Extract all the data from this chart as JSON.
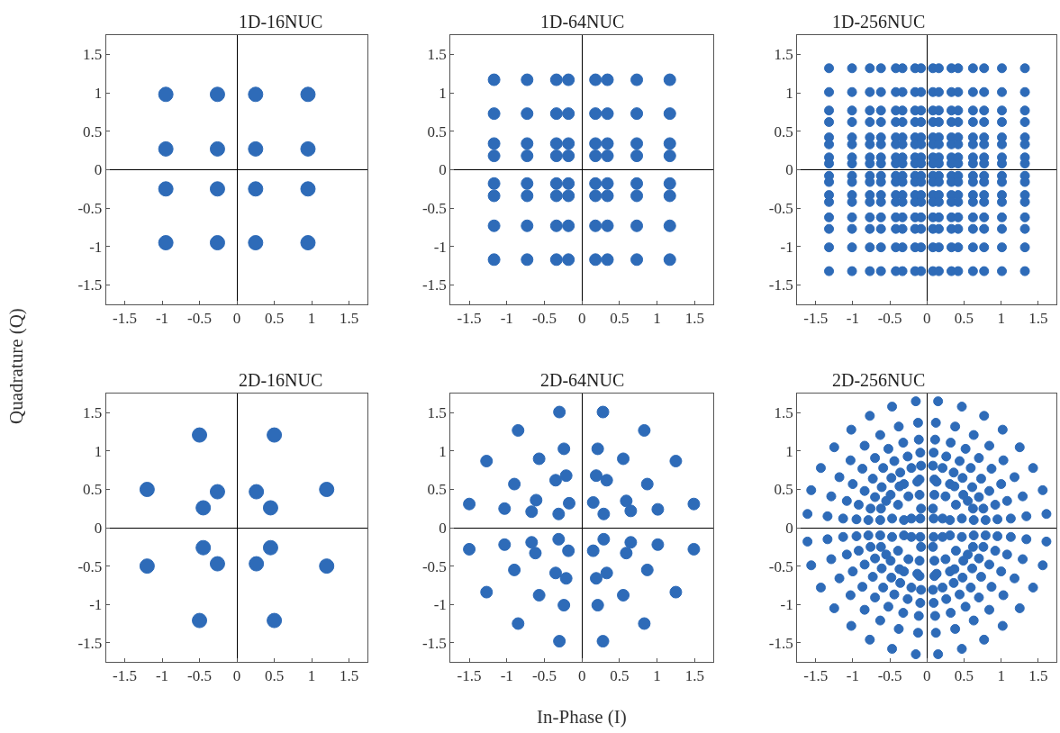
{
  "chart_data": [
    {
      "type": "scatter",
      "title": "1D-16NUC",
      "ylabel": "Quadrature (Q)",
      "color": "#2e6bb8",
      "marker": "circle",
      "xlim": [
        -1.75,
        1.75
      ],
      "ylim": [
        -1.75,
        1.75
      ],
      "xticks": [
        -1.5,
        -1,
        -0.5,
        0,
        0.5,
        1,
        1.5
      ],
      "yticks": [
        -1.5,
        -1,
        -0.5,
        0,
        0.5,
        1,
        1.5
      ],
      "x": [
        -0.95,
        -0.26,
        0.25,
        0.95,
        -0.95,
        -0.26,
        0.25,
        0.95,
        -0.95,
        -0.26,
        0.25,
        0.95,
        -0.95,
        -0.26,
        0.25,
        0.95
      ],
      "values": [
        0.98,
        0.98,
        0.98,
        0.98,
        0.27,
        0.27,
        0.27,
        0.27,
        -0.25,
        -0.25,
        -0.25,
        -0.25,
        -0.95,
        -0.95,
        -0.95,
        -0.95
      ]
    },
    {
      "type": "scatter",
      "title": "1D-64NUC",
      "color": "#2e6bb8",
      "marker": "circle",
      "xlim": [
        -1.75,
        1.75
      ],
      "ylim": [
        -1.75,
        1.75
      ],
      "xticks": [
        -1.5,
        -1,
        -0.5,
        0,
        0.5,
        1,
        1.5
      ],
      "yticks": [
        -1.5,
        -1,
        -0.5,
        0,
        0.5,
        1,
        1.5
      ],
      "x": [
        -1.17,
        -0.73,
        -0.34,
        -0.18,
        0.18,
        0.34,
        0.73,
        1.17,
        -1.17,
        -0.73,
        -0.34,
        -0.18,
        0.18,
        0.34,
        0.73,
        1.17,
        -1.17,
        -0.73,
        -0.34,
        -0.18,
        0.18,
        0.34,
        0.73,
        1.17,
        -1.17,
        -0.73,
        -0.34,
        -0.18,
        0.18,
        0.34,
        0.73,
        1.17,
        -1.17,
        -0.73,
        -0.34,
        -0.18,
        0.18,
        0.34,
        0.73,
        1.17,
        -1.17,
        -0.73,
        -0.34,
        -0.18,
        0.18,
        0.34,
        0.73,
        1.17,
        -1.17,
        -0.73,
        -0.34,
        -0.18,
        0.18,
        0.34,
        0.73,
        1.17,
        -1.17,
        -0.73,
        -0.34,
        -0.18,
        0.18,
        0.34,
        0.73,
        1.17
      ],
      "values": [
        1.17,
        1.17,
        1.17,
        1.17,
        1.17,
        1.17,
        1.17,
        1.17,
        0.73,
        0.73,
        0.73,
        0.73,
        0.73,
        0.73,
        0.73,
        0.73,
        0.34,
        0.34,
        0.34,
        0.34,
        0.34,
        0.34,
        0.34,
        0.34,
        0.18,
        0.18,
        0.18,
        0.18,
        0.18,
        0.18,
        0.18,
        0.18,
        -0.18,
        -0.18,
        -0.18,
        -0.18,
        -0.18,
        -0.18,
        -0.18,
        -0.18,
        -0.34,
        -0.34,
        -0.34,
        -0.34,
        -0.34,
        -0.34,
        -0.34,
        -0.34,
        -0.73,
        -0.73,
        -0.73,
        -0.73,
        -0.73,
        -0.73,
        -0.73,
        -0.73,
        -1.17,
        -1.17,
        -1.17,
        -1.17,
        -1.17,
        -1.17,
        -1.17,
        -1.17
      ]
    },
    {
      "type": "scatter",
      "title": "1D-256NUC",
      "color": "#2e6bb8",
      "marker": "circle",
      "xlim": [
        -1.75,
        1.75
      ],
      "ylim": [
        -1.75,
        1.75
      ],
      "xticks": [
        -1.5,
        -1,
        -0.5,
        0,
        0.5,
        1,
        1.5
      ],
      "yticks": [
        -1.5,
        -1,
        -0.5,
        0,
        0.5,
        1,
        1.5
      ],
      "x": [
        -1.32,
        -1.01,
        -0.77,
        -0.62,
        -0.42,
        -0.33,
        -0.16,
        -0.08,
        0.08,
        0.16,
        0.33,
        0.42,
        0.62,
        0.77,
        1.01,
        1.32,
        -1.32,
        -1.01,
        -0.77,
        -0.62,
        -0.42,
        -0.33,
        -0.16,
        -0.08,
        0.08,
        0.16,
        0.33,
        0.42,
        0.62,
        0.77,
        1.01,
        1.32,
        -1.32,
        -1.01,
        -0.77,
        -0.62,
        -0.42,
        -0.33,
        -0.16,
        -0.08,
        0.08,
        0.16,
        0.33,
        0.42,
        0.62,
        0.77,
        1.01,
        1.32,
        -1.32,
        -1.01,
        -0.77,
        -0.62,
        -0.42,
        -0.33,
        -0.16,
        -0.08,
        0.08,
        0.16,
        0.33,
        0.42,
        0.62,
        0.77,
        1.01,
        1.32,
        -1.32,
        -1.01,
        -0.77,
        -0.62,
        -0.42,
        -0.33,
        -0.16,
        -0.08,
        0.08,
        0.16,
        0.33,
        0.42,
        0.62,
        0.77,
        1.01,
        1.32,
        -1.32,
        -1.01,
        -0.77,
        -0.62,
        -0.42,
        -0.33,
        -0.16,
        -0.08,
        0.08,
        0.16,
        0.33,
        0.42,
        0.62,
        0.77,
        1.01,
        1.32,
        -1.32,
        -1.01,
        -0.77,
        -0.62,
        -0.42,
        -0.33,
        -0.16,
        -0.08,
        0.08,
        0.16,
        0.33,
        0.42,
        0.62,
        0.77,
        1.01,
        1.32,
        -1.32,
        -1.01,
        -0.77,
        -0.62,
        -0.42,
        -0.33,
        -0.16,
        -0.08,
        0.08,
        0.16,
        0.33,
        0.42,
        0.62,
        0.77,
        1.01,
        1.32,
        -1.32,
        -1.01,
        -0.77,
        -0.62,
        -0.42,
        -0.33,
        -0.16,
        -0.08,
        0.08,
        0.16,
        0.33,
        0.42,
        0.62,
        0.77,
        1.01,
        1.32,
        -1.32,
        -1.01,
        -0.77,
        -0.62,
        -0.42,
        -0.33,
        -0.16,
        -0.08,
        0.08,
        0.16,
        0.33,
        0.42,
        0.62,
        0.77,
        1.01,
        1.32,
        -1.32,
        -1.01,
        -0.77,
        -0.62,
        -0.42,
        -0.33,
        -0.16,
        -0.08,
        0.08,
        0.16,
        0.33,
        0.42,
        0.62,
        0.77,
        1.01,
        1.32,
        -1.32,
        -1.01,
        -0.77,
        -0.62,
        -0.42,
        -0.33,
        -0.16,
        -0.08,
        0.08,
        0.16,
        0.33,
        0.42,
        0.62,
        0.77,
        1.01,
        1.32,
        -1.32,
        -1.01,
        -0.77,
        -0.62,
        -0.42,
        -0.33,
        -0.16,
        -0.08,
        0.08,
        0.16,
        0.33,
        0.42,
        0.62,
        0.77,
        1.01,
        1.32,
        -1.32,
        -1.01,
        -0.77,
        -0.62,
        -0.42,
        -0.33,
        -0.16,
        -0.08,
        0.08,
        0.16,
        0.33,
        0.42,
        0.62,
        0.77,
        1.01,
        1.32,
        -1.32,
        -1.01,
        -0.77,
        -0.62,
        -0.42,
        -0.33,
        -0.16,
        -0.08,
        0.08,
        0.16,
        0.33,
        0.42,
        0.62,
        0.77,
        1.01,
        1.32,
        -1.32,
        -1.01,
        -0.77,
        -0.62,
        -0.42,
        -0.33,
        -0.16,
        -0.08,
        0.08,
        0.16,
        0.33,
        0.42,
        0.62,
        0.77,
        1.01,
        1.32
      ],
      "values": [
        1.32,
        1.32,
        1.32,
        1.32,
        1.32,
        1.32,
        1.32,
        1.32,
        1.32,
        1.32,
        1.32,
        1.32,
        1.32,
        1.32,
        1.32,
        1.32,
        1.01,
        1.01,
        1.01,
        1.01,
        1.01,
        1.01,
        1.01,
        1.01,
        1.01,
        1.01,
        1.01,
        1.01,
        1.01,
        1.01,
        1.01,
        1.01,
        0.77,
        0.77,
        0.77,
        0.77,
        0.77,
        0.77,
        0.77,
        0.77,
        0.77,
        0.77,
        0.77,
        0.77,
        0.77,
        0.77,
        0.77,
        0.77,
        0.62,
        0.62,
        0.62,
        0.62,
        0.62,
        0.62,
        0.62,
        0.62,
        0.62,
        0.62,
        0.62,
        0.62,
        0.62,
        0.62,
        0.62,
        0.62,
        0.42,
        0.42,
        0.42,
        0.42,
        0.42,
        0.42,
        0.42,
        0.42,
        0.42,
        0.42,
        0.42,
        0.42,
        0.42,
        0.42,
        0.42,
        0.42,
        0.33,
        0.33,
        0.33,
        0.33,
        0.33,
        0.33,
        0.33,
        0.33,
        0.33,
        0.33,
        0.33,
        0.33,
        0.33,
        0.33,
        0.33,
        0.33,
        0.16,
        0.16,
        0.16,
        0.16,
        0.16,
        0.16,
        0.16,
        0.16,
        0.16,
        0.16,
        0.16,
        0.16,
        0.16,
        0.16,
        0.16,
        0.16,
        0.08,
        0.08,
        0.08,
        0.08,
        0.08,
        0.08,
        0.08,
        0.08,
        0.08,
        0.08,
        0.08,
        0.08,
        0.08,
        0.08,
        0.08,
        0.08,
        -0.08,
        -0.08,
        -0.08,
        -0.08,
        -0.08,
        -0.08,
        -0.08,
        -0.08,
        -0.08,
        -0.08,
        -0.08,
        -0.08,
        -0.08,
        -0.08,
        -0.08,
        -0.08,
        -0.16,
        -0.16,
        -0.16,
        -0.16,
        -0.16,
        -0.16,
        -0.16,
        -0.16,
        -0.16,
        -0.16,
        -0.16,
        -0.16,
        -0.16,
        -0.16,
        -0.16,
        -0.16,
        -0.33,
        -0.33,
        -0.33,
        -0.33,
        -0.33,
        -0.33,
        -0.33,
        -0.33,
        -0.33,
        -0.33,
        -0.33,
        -0.33,
        -0.33,
        -0.33,
        -0.33,
        -0.33,
        -0.42,
        -0.42,
        -0.42,
        -0.42,
        -0.42,
        -0.42,
        -0.42,
        -0.42,
        -0.42,
        -0.42,
        -0.42,
        -0.42,
        -0.42,
        -0.42,
        -0.42,
        -0.42,
        -0.62,
        -0.62,
        -0.62,
        -0.62,
        -0.62,
        -0.62,
        -0.62,
        -0.62,
        -0.62,
        -0.62,
        -0.62,
        -0.62,
        -0.62,
        -0.62,
        -0.62,
        -0.62,
        -0.77,
        -0.77,
        -0.77,
        -0.77,
        -0.77,
        -0.77,
        -0.77,
        -0.77,
        -0.77,
        -0.77,
        -0.77,
        -0.77,
        -0.77,
        -0.77,
        -0.77,
        -0.77,
        -1.01,
        -1.01,
        -1.01,
        -1.01,
        -1.01,
        -1.01,
        -1.01,
        -1.01,
        -1.01,
        -1.01,
        -1.01,
        -1.01,
        -1.01,
        -1.01,
        -1.01,
        -1.01,
        -1.32,
        -1.32,
        -1.32,
        -1.32,
        -1.32,
        -1.32,
        -1.32,
        -1.32,
        -1.32,
        -1.32,
        -1.32,
        -1.32,
        -1.32,
        -1.32,
        -1.32,
        -1.32
      ]
    },
    {
      "type": "scatter",
      "title": "2D-16NUC",
      "color": "#2e6bb8",
      "marker": "circle",
      "xlim": [
        -1.75,
        1.75
      ],
      "ylim": [
        -1.75,
        1.75
      ],
      "xticks": [
        -1.5,
        -1,
        -0.5,
        0,
        0.5,
        1,
        1.5
      ],
      "yticks": [
        -1.5,
        -1,
        -0.5,
        0,
        0.5,
        1,
        1.5
      ],
      "x": [
        -0.5,
        0.5,
        -1.2,
        1.2,
        -0.26,
        0.26,
        -0.45,
        0.45,
        -0.5,
        0.5,
        -1.2,
        1.2,
        -0.26,
        0.26,
        -0.45,
        0.45
      ],
      "values": [
        1.21,
        1.21,
        0.5,
        0.5,
        0.47,
        0.47,
        0.26,
        0.26,
        -1.21,
        -1.21,
        -0.5,
        -0.5,
        -0.47,
        -0.47,
        -0.26,
        -0.26
      ]
    },
    {
      "type": "scatter",
      "title": "2D-64NUC",
      "xlabel": "In-Phase (I)",
      "color": "#2e6bb8",
      "marker": "circle",
      "xlim": [
        -1.75,
        1.75
      ],
      "ylim": [
        -1.75,
        1.75
      ],
      "xticks": [
        -1.5,
        -1,
        -0.5,
        0,
        0.5,
        1,
        1.5
      ],
      "yticks": [
        -1.5,
        -1,
        -0.5,
        0,
        0.5,
        1,
        1.5
      ],
      "x": [
        0.28,
        0.83,
        0.21,
        0.55,
        1.25,
        0.19,
        0.33,
        0.87,
        0.15,
        0.59,
        1.49,
        0.29,
        0.65,
        1.01,
        -0.3,
        -0.85,
        -0.24,
        -0.57,
        -1.27,
        -0.21,
        -0.35,
        -0.9,
        -0.61,
        -0.17,
        -1.5,
        -1.03,
        -0.67,
        -0.31,
        0.29,
        0.65,
        1.01,
        0.15,
        0.59,
        1.49,
        0.33,
        0.19,
        0.87,
        0.55,
        1.25,
        0.21,
        0.83,
        0.28,
        -0.31,
        -0.67,
        -1.03,
        -0.18,
        -0.62,
        -1.5,
        -0.35,
        -0.21,
        -0.9,
        -0.57,
        -1.27,
        -0.24,
        -0.85,
        -0.3
      ],
      "values": [
        1.51,
        1.27,
        1.03,
        0.9,
        0.87,
        0.68,
        0.62,
        0.57,
        0.33,
        0.35,
        0.31,
        0.18,
        0.22,
        0.24,
        1.51,
        1.27,
        1.03,
        0.9,
        0.87,
        0.68,
        0.62,
        0.57,
        0.36,
        0.32,
        0.31,
        0.25,
        0.21,
        0.18,
        -0.15,
        -0.19,
        -0.22,
        -0.3,
        -0.33,
        -0.28,
        -0.59,
        -0.66,
        -0.55,
        -0.88,
        -0.84,
        -1.01,
        -1.25,
        -1.48,
        -0.15,
        -0.19,
        -0.22,
        -0.3,
        -0.33,
        -0.28,
        -0.59,
        -0.66,
        -0.55,
        -0.88,
        -0.84,
        -1.01,
        -1.25,
        -1.48
      ]
    },
    {
      "type": "scatter",
      "title": "2D-256NUC",
      "color": "#2e6bb8",
      "marker": "circle",
      "xlim": [
        -1.75,
        1.75
      ],
      "ylim": [
        -1.75,
        1.75
      ],
      "xticks": [
        -1.5,
        -1,
        -0.5,
        0,
        0.5,
        1,
        1.5
      ],
      "yticks": [
        -1.5,
        -1,
        -0.5,
        0,
        0.5,
        1,
        1.5
      ],
      "x": [
        0.15,
        0.47,
        0.77,
        1.02,
        1.25,
        1.43,
        1.56,
        1.61,
        0.12,
        0.38,
        0.63,
        0.84,
        1.03,
        1.18,
        1.29,
        1.34,
        0.11,
        0.32,
        0.52,
        0.7,
        0.87,
        1.0,
        1.08,
        1.13,
        0.09,
        0.26,
        0.44,
        0.59,
        0.73,
        0.84,
        0.92,
        0.95,
        0.08,
        0.21,
        0.36,
        0.48,
        0.61,
        0.7,
        0.76,
        0.79,
        0.1,
        0.13,
        0.31,
        0.37,
        0.49,
        0.55,
        0.62,
        0.63,
        0.1,
        0.25,
        0.39,
        0.47,
        0.08,
        0.21,
        0.31,
        0.09,
        -0.15,
        -0.47,
        -0.77,
        -1.02,
        -1.25,
        -1.43,
        -1.56,
        -1.61,
        -0.12,
        -0.38,
        -0.63,
        -0.84,
        -1.03,
        -1.18,
        -1.29,
        -1.34,
        -0.11,
        -0.32,
        -0.52,
        -0.7,
        -0.87,
        -1.0,
        -1.08,
        -1.13,
        -0.09,
        -0.26,
        -0.44,
        -0.59,
        -0.73,
        -0.84,
        -0.92,
        -0.95,
        -0.08,
        -0.21,
        -0.36,
        -0.48,
        -0.61,
        -0.7,
        -0.76,
        -0.79,
        -0.1,
        -0.13,
        -0.31,
        -0.37,
        -0.49,
        -0.55,
        -0.62,
        -0.63,
        -0.1,
        -0.25,
        -0.39,
        -0.47,
        -0.08,
        -0.21,
        -0.31,
        -0.09,
        -0.15,
        -0.47,
        -0.77,
        -1.02,
        -1.25,
        -1.43,
        -1.56,
        -1.61,
        -0.12,
        -0.38,
        -0.63,
        -0.84,
        -1.03,
        -1.18,
        -1.29,
        -1.34,
        -0.11,
        -0.32,
        -0.52,
        -0.7,
        -0.87,
        -1.0,
        -1.08,
        -1.13,
        -0.09,
        -0.26,
        -0.44,
        -0.59,
        -0.73,
        -0.84,
        -0.92,
        -0.95,
        -0.08,
        -0.21,
        -0.36,
        -0.48,
        -0.61,
        -0.7,
        -0.76,
        -0.79,
        -0.1,
        -0.13,
        -0.31,
        -0.37,
        -0.49,
        -0.55,
        -0.62,
        -0.63,
        -0.1,
        -0.25,
        -0.39,
        -0.47,
        -0.08,
        -0.21,
        -0.31,
        -0.09,
        0.15,
        0.47,
        0.77,
        1.02,
        1.25,
        1.43,
        1.56,
        1.61,
        0.12,
        0.38,
        0.63,
        0.84,
        1.03,
        1.18,
        1.29,
        1.34,
        0.11,
        0.32,
        0.52,
        0.7,
        0.87,
        1.0,
        1.08,
        1.13,
        0.09,
        0.26,
        0.44,
        0.59,
        0.73,
        0.84,
        0.92,
        0.95,
        0.08,
        0.21,
        0.36,
        0.48,
        0.61,
        0.7,
        0.76,
        0.79,
        0.1,
        0.13,
        0.31,
        0.37,
        0.49,
        0.55,
        0.62,
        0.63,
        0.1,
        0.25,
        0.39,
        0.47,
        0.08,
        0.21,
        0.31,
        0.09
      ],
      "values": [
        1.65,
        1.58,
        1.46,
        1.28,
        1.05,
        0.78,
        0.49,
        0.18,
        1.37,
        1.32,
        1.21,
        1.07,
        0.88,
        0.66,
        0.41,
        0.15,
        1.15,
        1.11,
        1.03,
        0.91,
        0.77,
        0.57,
        0.35,
        0.12,
        0.98,
        0.93,
        0.87,
        0.78,
        0.64,
        0.48,
        0.3,
        0.11,
        0.81,
        0.78,
        0.72,
        0.65,
        0.53,
        0.4,
        0.25,
        0.1,
        0.63,
        0.6,
        0.57,
        0.54,
        0.43,
        0.35,
        0.25,
        0.1,
        0.43,
        0.41,
        0.3,
        0.12,
        0.25,
        0.12,
        0.1,
        0.12,
        1.65,
        1.58,
        1.46,
        1.28,
        1.05,
        0.78,
        0.49,
        0.18,
        1.37,
        1.32,
        1.21,
        1.07,
        0.88,
        0.66,
        0.41,
        0.15,
        1.15,
        1.11,
        1.03,
        0.91,
        0.77,
        0.57,
        0.35,
        0.12,
        0.98,
        0.93,
        0.87,
        0.78,
        0.64,
        0.48,
        0.3,
        0.11,
        0.81,
        0.78,
        0.72,
        0.65,
        0.53,
        0.4,
        0.25,
        0.1,
        0.63,
        0.6,
        0.57,
        0.54,
        0.43,
        0.35,
        0.25,
        0.1,
        0.43,
        0.41,
        0.3,
        0.12,
        0.25,
        0.12,
        0.1,
        0.12,
        -1.65,
        -1.58,
        -1.46,
        -1.28,
        -1.05,
        -0.78,
        -0.49,
        -0.18,
        -1.37,
        -1.32,
        -1.21,
        -1.07,
        -0.88,
        -0.66,
        -0.41,
        -0.15,
        -1.15,
        -1.11,
        -1.03,
        -0.91,
        -0.77,
        -0.57,
        -0.35,
        -0.12,
        -0.98,
        -0.93,
        -0.87,
        -0.78,
        -0.64,
        -0.48,
        -0.3,
        -0.11,
        -0.81,
        -0.78,
        -0.72,
        -0.65,
        -0.53,
        -0.4,
        -0.25,
        -0.1,
        -0.63,
        -0.6,
        -0.57,
        -0.54,
        -0.43,
        -0.35,
        -0.25,
        -0.1,
        -0.43,
        -0.41,
        -0.3,
        -0.12,
        -0.25,
        -0.12,
        -0.1,
        -0.12,
        -1.65,
        -1.58,
        -1.46,
        -1.28,
        -1.05,
        -0.78,
        -0.49,
        -0.18,
        -1.37,
        -1.32,
        -1.21,
        -1.07,
        -0.88,
        -0.66,
        -0.41,
        -0.15,
        -1.15,
        -1.11,
        -1.03,
        -0.91,
        -0.77,
        -0.57,
        -0.35,
        -0.12,
        -0.98,
        -0.93,
        -0.87,
        -0.78,
        -0.64,
        -0.48,
        -0.3,
        -0.11,
        -0.81,
        -0.78,
        -0.72,
        -0.65,
        -0.53,
        -0.4,
        -0.25,
        -0.1,
        -0.63,
        -0.6,
        -0.57,
        -0.54,
        -0.43,
        -0.35,
        -0.25,
        -0.1,
        -0.43,
        -0.41,
        -0.3,
        -0.12,
        -0.25,
        -0.12,
        -0.1,
        -0.12
      ]
    }
  ]
}
